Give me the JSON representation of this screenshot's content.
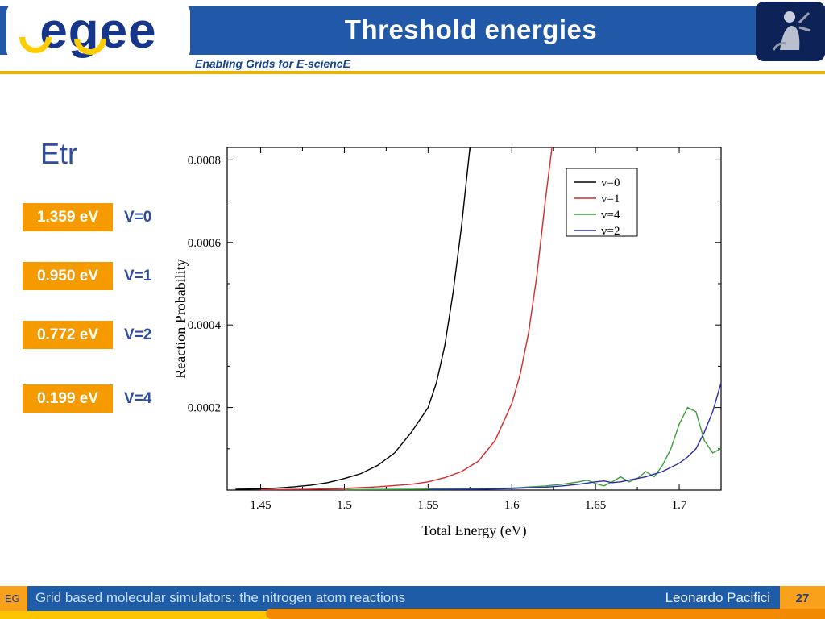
{
  "header": {
    "title": "Threshold energies",
    "logo_text": "egee",
    "tagline": "Enabling Grids for E-sciencE"
  },
  "content": {
    "etr_label": "Etr",
    "thresholds": [
      {
        "value": "1.359 eV",
        "level": "V=0"
      },
      {
        "value": "0.950 eV",
        "level": "V=1"
      },
      {
        "value": "0.772 eV",
        "level": "V=2"
      },
      {
        "value": "0.199 eV",
        "level": "V=4"
      }
    ]
  },
  "footer": {
    "left_fragment": "EG",
    "title": "Grid based molecular simulators: the nitrogen atom reactions",
    "author": "Leonardo Pacifici",
    "page": "27"
  },
  "colors": {
    "header_blue": "#2158a8",
    "footer_blue": "#1e5ca8",
    "accent_orange": "#f59b00",
    "footer_orange": "#f9a11b",
    "label_blue": "#2d4e9e"
  },
  "chart_data": {
    "type": "line",
    "title": "",
    "xlabel": "Total Energy (eV)",
    "ylabel": "Reaction Probability",
    "xlim": [
      1.43,
      1.725
    ],
    "ylim": [
      0,
      0.00083
    ],
    "grid": false,
    "legend_position": "top-right",
    "x_ticks": [
      {
        "v": 1.45,
        "label": "1.45"
      },
      {
        "v": 1.5,
        "label": "1.5"
      },
      {
        "v": 1.55,
        "label": "1.55"
      },
      {
        "v": 1.6,
        "label": "1.6"
      },
      {
        "v": 1.65,
        "label": "1.65"
      },
      {
        "v": 1.7,
        "label": "1.7"
      }
    ],
    "y_ticks": [
      {
        "v": 0.0002,
        "label": "0.0002"
      },
      {
        "v": 0.0004,
        "label": "0.0004"
      },
      {
        "v": 0.0006,
        "label": "0.0006"
      },
      {
        "v": 0.0008,
        "label": "0.0008"
      }
    ],
    "x_minor_ticks": [
      1.475,
      1.525,
      1.575,
      1.625,
      1.675
    ],
    "y_minor_ticks": [
      0.0001,
      0.0003,
      0.0005,
      0.0007
    ],
    "series": [
      {
        "name": "v=0",
        "color": "#000000",
        "points": [
          [
            1.435,
            2e-06
          ],
          [
            1.45,
            3e-06
          ],
          [
            1.46,
            5e-06
          ],
          [
            1.47,
            8e-06
          ],
          [
            1.48,
            1.2e-05
          ],
          [
            1.49,
            1.8e-05
          ],
          [
            1.5,
            2.8e-05
          ],
          [
            1.51,
            4e-05
          ],
          [
            1.52,
            6e-05
          ],
          [
            1.53,
            9e-05
          ],
          [
            1.54,
            0.00014
          ],
          [
            1.55,
            0.0002
          ],
          [
            1.555,
            0.00026
          ],
          [
            1.56,
            0.00035
          ],
          [
            1.565,
            0.00048
          ],
          [
            1.57,
            0.00064
          ],
          [
            1.575,
            0.00083
          ]
        ]
      },
      {
        "name": "v=1",
        "color": "#d42a2a",
        "points": [
          [
            1.45,
            1e-06
          ],
          [
            1.48,
            2e-06
          ],
          [
            1.5,
            4e-06
          ],
          [
            1.52,
            8e-06
          ],
          [
            1.54,
            1.4e-05
          ],
          [
            1.55,
            2e-05
          ],
          [
            1.56,
            3e-05
          ],
          [
            1.57,
            4.5e-05
          ],
          [
            1.58,
            7e-05
          ],
          [
            1.59,
            0.00012
          ],
          [
            1.6,
            0.00021
          ],
          [
            1.605,
            0.00028
          ],
          [
            1.61,
            0.00038
          ],
          [
            1.615,
            0.00052
          ],
          [
            1.62,
            0.0007
          ],
          [
            1.624,
            0.00083
          ]
        ]
      },
      {
        "name": "v=4",
        "color": "#3c9e3c",
        "points": [
          [
            1.5,
            1e-06
          ],
          [
            1.54,
            2e-06
          ],
          [
            1.57,
            3e-06
          ],
          [
            1.6,
            5e-06
          ],
          [
            1.62,
            1e-05
          ],
          [
            1.63,
            1.4e-05
          ],
          [
            1.64,
            2e-05
          ],
          [
            1.645,
            2.4e-05
          ],
          [
            1.65,
            1.6e-05
          ],
          [
            1.655,
            1e-05
          ],
          [
            1.66,
            2e-05
          ],
          [
            1.665,
            3.2e-05
          ],
          [
            1.67,
            2e-05
          ],
          [
            1.675,
            2.8e-05
          ],
          [
            1.68,
            4.5e-05
          ],
          [
            1.685,
            3.2e-05
          ],
          [
            1.69,
            6e-05
          ],
          [
            1.695,
            0.0001
          ],
          [
            1.7,
            0.00016
          ],
          [
            1.705,
            0.0002
          ],
          [
            1.71,
            0.00019
          ],
          [
            1.715,
            0.00012
          ],
          [
            1.72,
            9e-05
          ],
          [
            1.725,
            0.0001
          ]
        ]
      },
      {
        "name": "v=2",
        "color": "#2b2ba8",
        "points": [
          [
            1.55,
            1e-06
          ],
          [
            1.58,
            2e-06
          ],
          [
            1.6,
            4e-06
          ],
          [
            1.62,
            7e-06
          ],
          [
            1.63,
            1e-05
          ],
          [
            1.64,
            1.4e-05
          ],
          [
            1.65,
            2e-05
          ],
          [
            1.655,
            2.2e-05
          ],
          [
            1.66,
            1.8e-05
          ],
          [
            1.665,
            2e-05
          ],
          [
            1.67,
            2.4e-05
          ],
          [
            1.68,
            3.2e-05
          ],
          [
            1.69,
            4.5e-05
          ],
          [
            1.7,
            6.5e-05
          ],
          [
            1.705,
            8e-05
          ],
          [
            1.71,
            0.0001
          ],
          [
            1.715,
            0.00014
          ],
          [
            1.72,
            0.00019
          ],
          [
            1.725,
            0.00026
          ]
        ]
      }
    ]
  }
}
